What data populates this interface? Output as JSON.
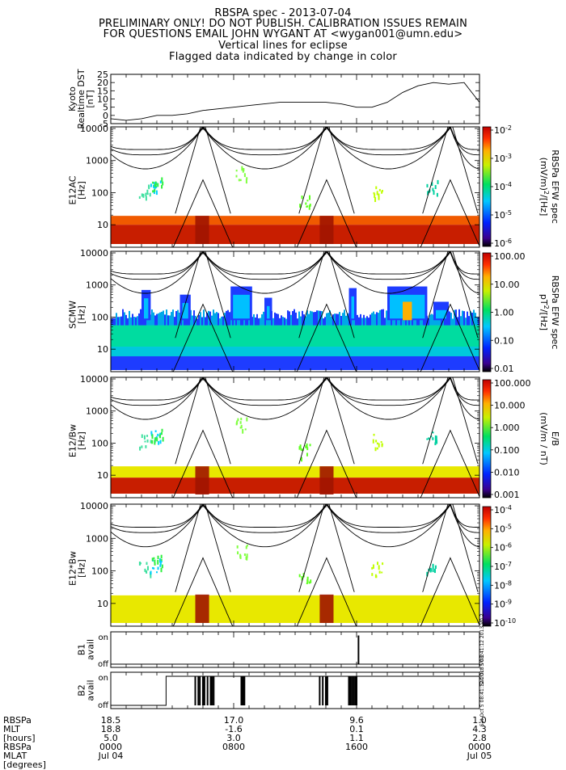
{
  "header": {
    "title": "RBSPA spec - 2013-07-04",
    "line2": "PRELIMINARY ONLY! DO NOT PUBLISH. CALIBRATION ISSUES REMAIN",
    "line3": "FOR QUESTIONS EMAIL JOHN WYGANT AT <wygan001@umn.edu>",
    "line4": "Vertical lines for eclipse",
    "line5": "Flagged data indicated by change in color"
  },
  "colors": {
    "line": "#000000",
    "band_red": "#c81e00",
    "band_orange": "#f05a00",
    "band_yellow": "#e8e800",
    "noise_blue": "#1e3cff",
    "noise_cyan": "#00c8dc",
    "noise_green": "#00dca0"
  },
  "chart_data": [
    {
      "type": "line",
      "name": "dst",
      "ylabel_lines": [
        "Kyoto",
        "Realtime DST",
        "[nT]"
      ],
      "ylim": [
        -5,
        25
      ],
      "yticks": [
        "-5",
        "0",
        "5",
        "10",
        "15",
        "20",
        "25"
      ],
      "x_hours": [
        0,
        1,
        2,
        3,
        4,
        5,
        6,
        7,
        8,
        9,
        10,
        11,
        12,
        13,
        14,
        15,
        16,
        17,
        18,
        19,
        20,
        21,
        22,
        23,
        24
      ],
      "values": [
        -2,
        -3,
        -2,
        0,
        0,
        1,
        3,
        4,
        5,
        6,
        7,
        8,
        8,
        8,
        8,
        7,
        5,
        5,
        8,
        14,
        18,
        20,
        19,
        20,
        8
      ]
    },
    {
      "type": "heatmap",
      "name": "e12ac",
      "ylabel_lines": [
        "E12AC",
        "[Hz]"
      ],
      "yticks": [
        "10",
        "100",
        "1000",
        "10000"
      ],
      "colorbar_ticks": [
        "10^-2",
        "10^-3",
        "10^-4",
        "10^-5",
        "10^-6"
      ],
      "colorbar_label_lines": [
        "(mV/m)^2/[Hz]",
        "RBSPa EFW spec"
      ],
      "band_scheme": "red"
    },
    {
      "type": "heatmap",
      "name": "scmw",
      "ylabel_lines": [
        "SCMW",
        "[Hz]"
      ],
      "yticks": [
        "10",
        "100",
        "1000",
        "10000"
      ],
      "colorbar_ticks": [
        "100.00",
        "10.00",
        "1.00",
        "0.10",
        "0.01"
      ],
      "colorbar_label_lines": [
        "pT^2/[Hz]",
        "RBSPa EFW spec"
      ],
      "band_scheme": "noise"
    },
    {
      "type": "heatmap",
      "name": "e12_over_bw",
      "ylabel_lines": [
        "E12/Bw",
        "[Hz]"
      ],
      "yticks": [
        "10",
        "100",
        "1000",
        "10000"
      ],
      "colorbar_ticks": [
        "100.000",
        "10.000",
        "1.000",
        "0.100",
        "0.010",
        "0.001"
      ],
      "colorbar_label_lines": [
        "(mV/m / nT)",
        "E/B"
      ],
      "band_scheme": "yellow-red"
    },
    {
      "type": "heatmap",
      "name": "e12_times_bw",
      "ylabel_lines": [
        "E12*Bw",
        "[Hz]"
      ],
      "yticks": [
        "10",
        "100",
        "1000",
        "10000"
      ],
      "colorbar_ticks": [
        "10^-4",
        "10^-5",
        "10^-6",
        "10^-7",
        "10^-8",
        "10^-9",
        "10^-10"
      ],
      "colorbar_label_lines": [],
      "band_scheme": "yellow"
    },
    {
      "type": "line",
      "name": "b1",
      "ylabel_lines": [
        "B1",
        "avail"
      ],
      "yticks": [
        "off",
        "on"
      ],
      "side_note": "Sat Oct 5 08:41:12 2013 V0.2",
      "on_intervals_hours": [
        [
          16.1,
          16.15
        ]
      ]
    },
    {
      "type": "line",
      "name": "b2",
      "ylabel_lines": [
        "B2",
        "avail"
      ],
      "yticks": [
        "off",
        "on"
      ],
      "side_note": "Sat Oct 5 08:41:12 2013 V0.2",
      "on_intervals_hours": [
        [
          3.6,
          24
        ]
      ],
      "spikes_hours": [
        5.5,
        5.7,
        5.8,
        6.0,
        6.1,
        6.3,
        6.5,
        6.6,
        6.7,
        8.5,
        8.6,
        8.65,
        8.7,
        13.6,
        13.8,
        14.0,
        14.1,
        15.5,
        15.6,
        15.7,
        15.8,
        15.9,
        16.0
      ]
    }
  ],
  "footer": {
    "row_labels": [
      "RBSPa",
      "MLT",
      "[hours]",
      "RBSPa",
      "MLAT",
      "[degrees]"
    ],
    "columns": [
      {
        "l": "18.5",
        "m": "18.8",
        "h": "5.0",
        "z": "0000",
        "t": "Jul 04"
      },
      {
        "l": "17.0",
        "m": "-1.6",
        "h": "3.0",
        "z": "0800",
        "t": ""
      },
      {
        "l": "9.6",
        "m": "0.1",
        "h": "1.1",
        "z": "1600",
        "t": ""
      },
      {
        "l": "1.0",
        "m": "4.3",
        "h": "2.8",
        "z": "0000",
        "t": "Jul 05"
      }
    ]
  }
}
